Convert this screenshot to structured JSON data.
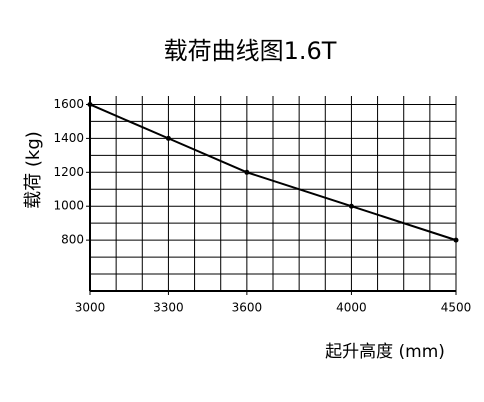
{
  "chart_data": {
    "type": "line",
    "title": "载荷曲线图1.6T",
    "y_label": "载荷 (kg)",
    "x_label": "起升高度 (mm)",
    "categories": [
      "3000",
      "3300",
      "3600",
      "4000",
      "4500"
    ],
    "series": [
      {
        "name": "载荷",
        "color": "#000000",
        "values": [
          1600,
          1400,
          1200,
          1000,
          800
        ]
      }
    ],
    "ylim": [
      500,
      1650
    ],
    "yticks": [
      800,
      1000,
      1200,
      1400,
      1600
    ],
    "ygrid": [
      600,
      700,
      800,
      900,
      1000,
      1100,
      1200,
      1300,
      1400,
      1500,
      1600
    ],
    "grid": true
  }
}
